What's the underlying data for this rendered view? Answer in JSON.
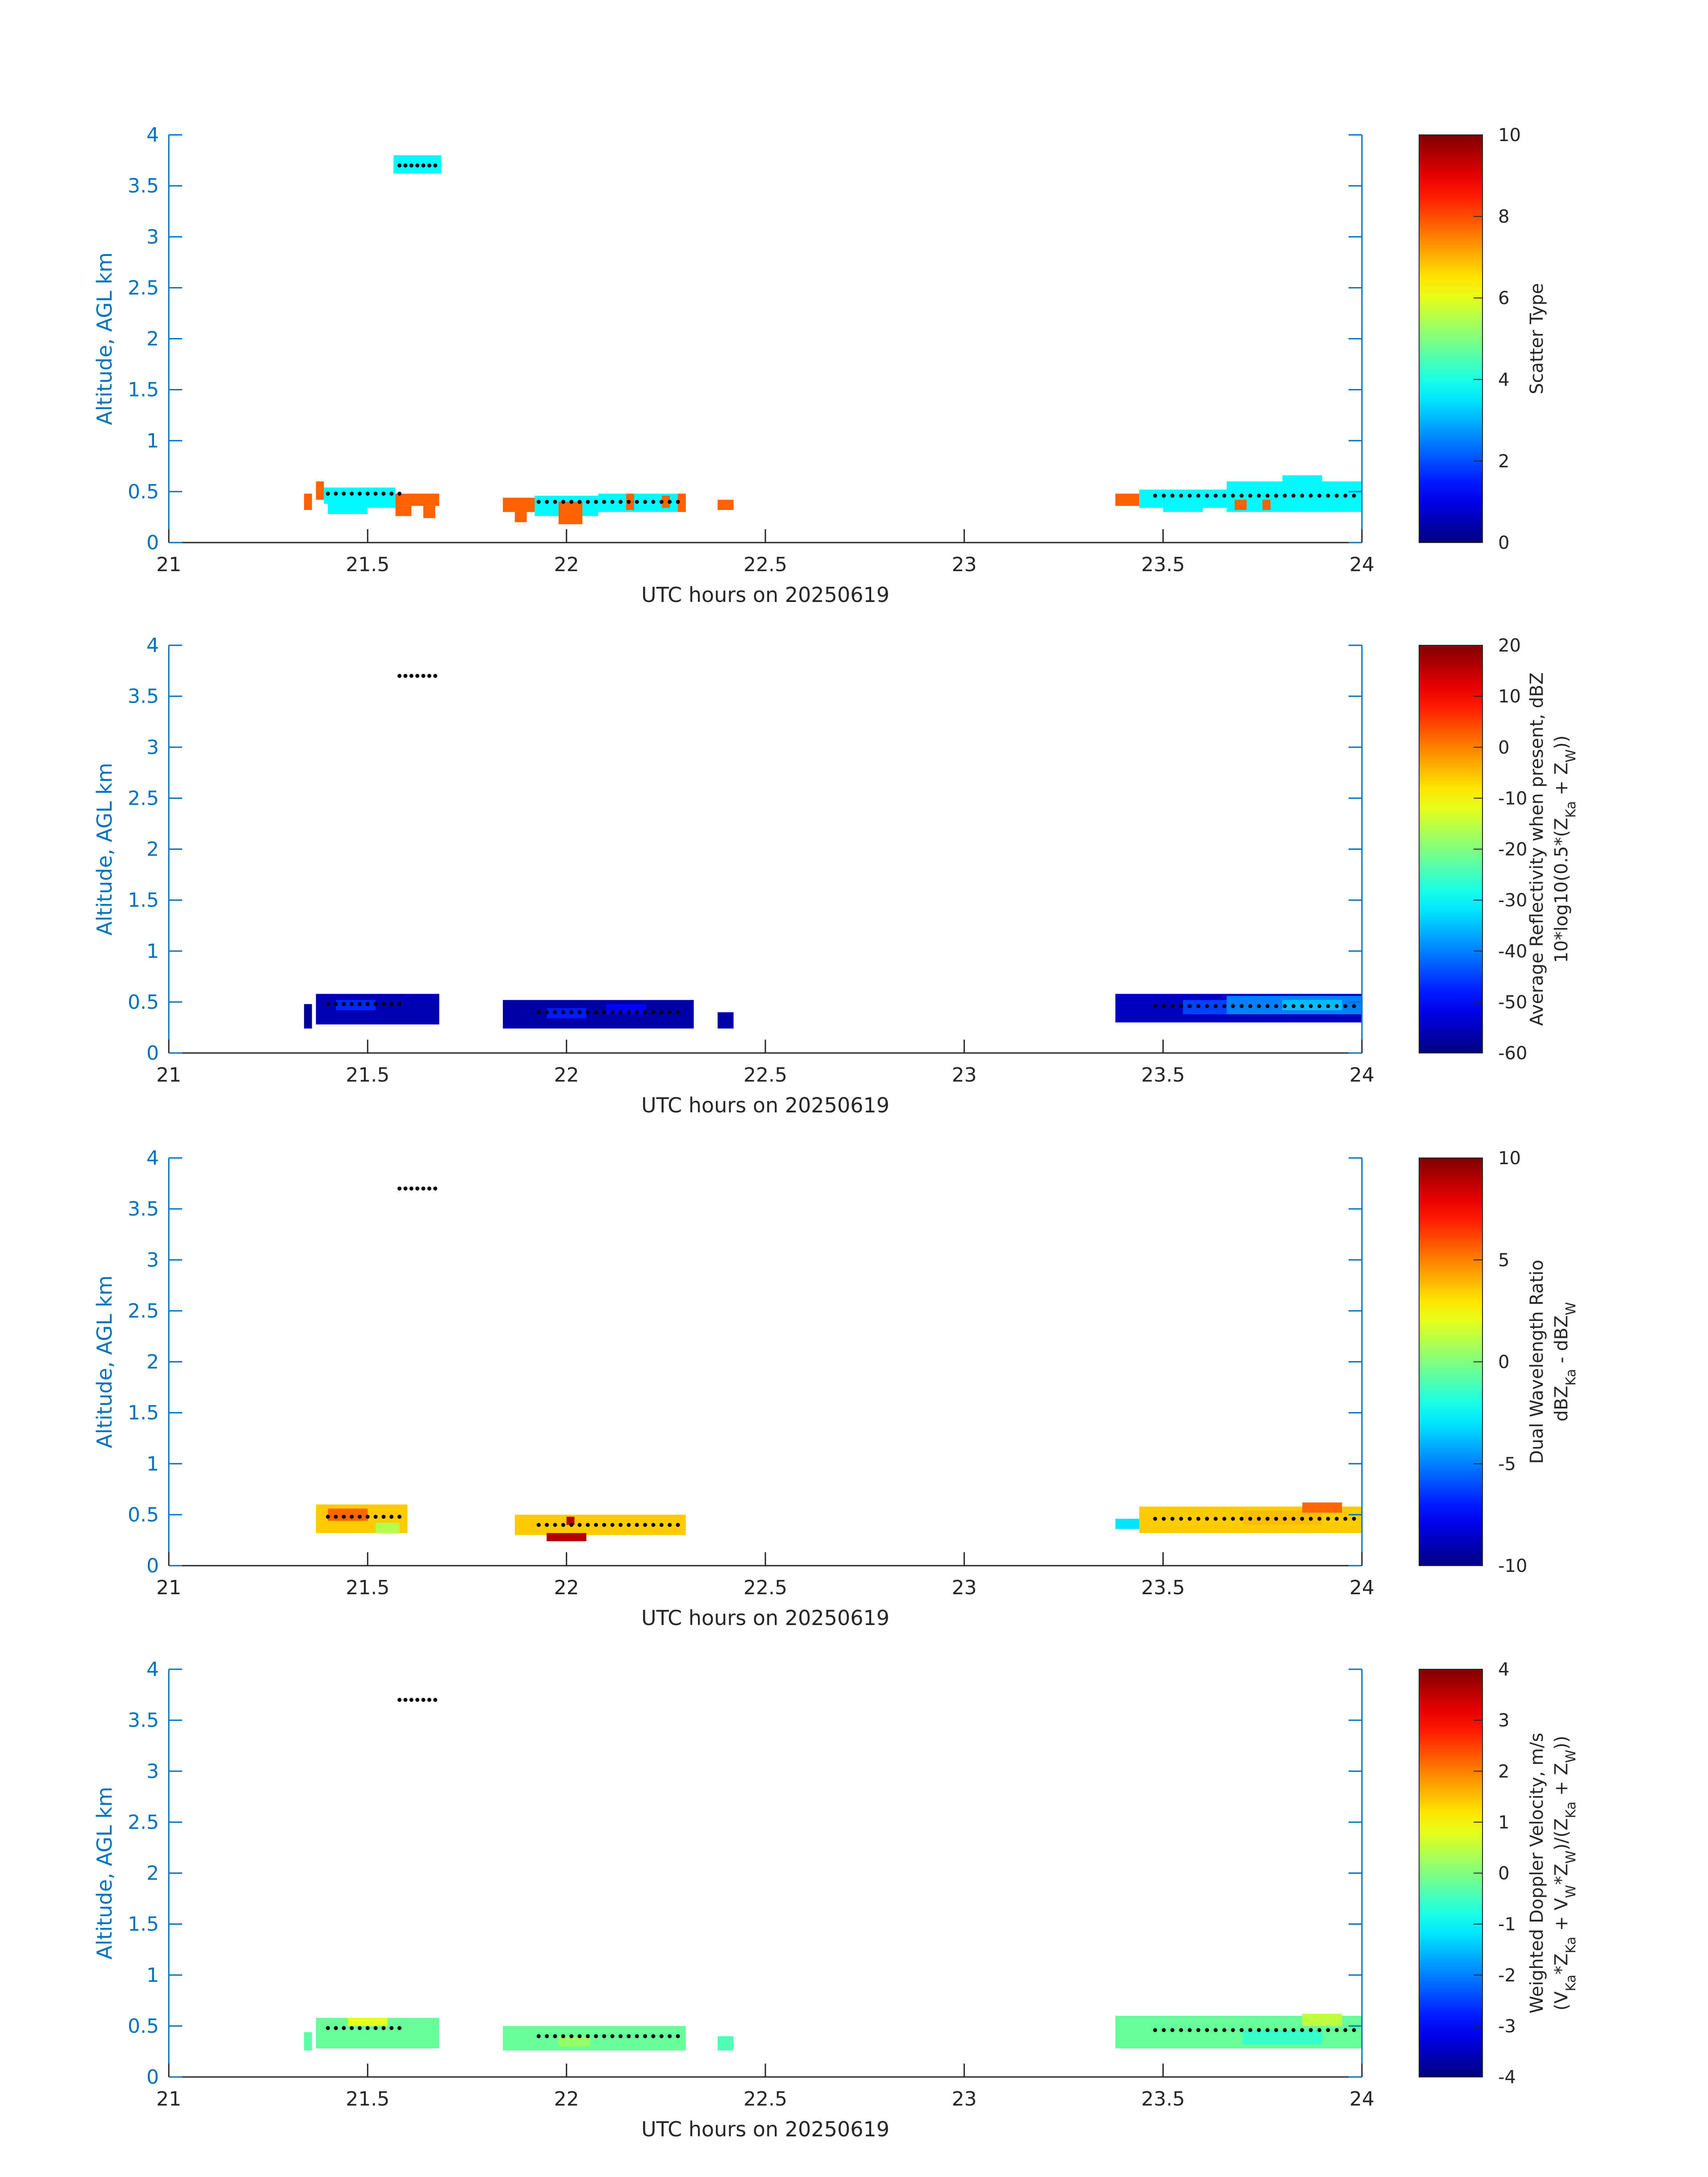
{
  "chart_data": [
    {
      "type": "heatmap",
      "panel": "scatter-type",
      "xlabel": "UTC hours on 20250619",
      "ylabel": "Altitude, AGL km",
      "xlim": [
        21,
        24
      ],
      "ylim": [
        0,
        4
      ],
      "xticks": [
        "21",
        "21.5",
        "22",
        "22.5",
        "23",
        "23.5",
        "24"
      ],
      "yticks": [
        "0",
        "0.5",
        "1",
        "1.5",
        "2",
        "2.5",
        "3",
        "3.5",
        "4"
      ],
      "colorbar": {
        "label_lines": [
          "Scatter Type"
        ],
        "clim": [
          0,
          10
        ],
        "ticks": [
          "0",
          "2",
          "4",
          "6",
          "8",
          "10"
        ]
      },
      "cells": [
        {
          "x0": 21.565,
          "x1": 21.685,
          "y0": 3.62,
          "y1": 3.8,
          "value": 3.7
        },
        {
          "x0": 21.34,
          "x1": 21.36,
          "y0": 0.32,
          "y1": 0.48,
          "value": 7.8
        },
        {
          "x0": 21.37,
          "x1": 21.39,
          "y0": 0.42,
          "y1": 0.6,
          "value": 7.8
        },
        {
          "x0": 21.39,
          "x1": 21.57,
          "y0": 0.38,
          "y1": 0.54,
          "value": 3.7
        },
        {
          "x0": 21.4,
          "x1": 21.5,
          "y0": 0.28,
          "y1": 0.4,
          "value": 3.7
        },
        {
          "x0": 21.5,
          "x1": 21.57,
          "y0": 0.34,
          "y1": 0.46,
          "value": 3.7
        },
        {
          "x0": 21.57,
          "x1": 21.68,
          "y0": 0.36,
          "y1": 0.48,
          "value": 7.8
        },
        {
          "x0": 21.57,
          "x1": 21.61,
          "y0": 0.26,
          "y1": 0.36,
          "value": 7.8
        },
        {
          "x0": 21.64,
          "x1": 21.67,
          "y0": 0.24,
          "y1": 0.36,
          "value": 7.8
        },
        {
          "x0": 21.84,
          "x1": 21.92,
          "y0": 0.3,
          "y1": 0.44,
          "value": 7.8
        },
        {
          "x0": 21.87,
          "x1": 21.9,
          "y0": 0.2,
          "y1": 0.3,
          "value": 7.8
        },
        {
          "x0": 21.92,
          "x1": 22.08,
          "y0": 0.26,
          "y1": 0.46,
          "value": 3.7
        },
        {
          "x0": 21.98,
          "x1": 22.04,
          "y0": 0.18,
          "y1": 0.4,
          "value": 7.8
        },
        {
          "x0": 22.08,
          "x1": 22.3,
          "y0": 0.3,
          "y1": 0.48,
          "value": 3.7
        },
        {
          "x0": 22.15,
          "x1": 22.17,
          "y0": 0.32,
          "y1": 0.48,
          "value": 7.8
        },
        {
          "x0": 22.24,
          "x1": 22.26,
          "y0": 0.34,
          "y1": 0.46,
          "value": 7.8
        },
        {
          "x0": 22.28,
          "x1": 22.3,
          "y0": 0.3,
          "y1": 0.48,
          "value": 7.8
        },
        {
          "x0": 22.38,
          "x1": 22.42,
          "y0": 0.32,
          "y1": 0.42,
          "value": 7.8
        },
        {
          "x0": 23.38,
          "x1": 23.44,
          "y0": 0.36,
          "y1": 0.48,
          "value": 7.8
        },
        {
          "x0": 23.44,
          "x1": 23.66,
          "y0": 0.34,
          "y1": 0.52,
          "value": 3.7
        },
        {
          "x0": 23.5,
          "x1": 23.6,
          "y0": 0.3,
          "y1": 0.4,
          "value": 3.7
        },
        {
          "x0": 23.66,
          "x1": 24.0,
          "y0": 0.3,
          "y1": 0.6,
          "value": 3.7
        },
        {
          "x0": 23.8,
          "x1": 23.9,
          "y0": 0.56,
          "y1": 0.66,
          "value": 3.7
        },
        {
          "x0": 23.68,
          "x1": 23.71,
          "y0": 0.32,
          "y1": 0.42,
          "value": 7.8
        },
        {
          "x0": 23.75,
          "x1": 23.77,
          "y0": 0.32,
          "y1": 0.42,
          "value": 7.8
        }
      ],
      "dots": [
        {
          "x0": 21.58,
          "x1": 21.67,
          "y": 3.7,
          "n": 7
        },
        {
          "x0": 21.4,
          "x1": 21.58,
          "y": 0.48,
          "n": 10
        },
        {
          "x0": 21.93,
          "x1": 22.28,
          "y": 0.4,
          "n": 18
        },
        {
          "x0": 23.48,
          "x1": 23.98,
          "y": 0.46,
          "n": 24
        }
      ]
    },
    {
      "type": "heatmap",
      "panel": "reflectivity",
      "xlabel": "UTC hours on 20250619",
      "ylabel": "Altitude, AGL km",
      "xlim": [
        21,
        24
      ],
      "ylim": [
        0,
        4
      ],
      "xticks": [
        "21",
        "21.5",
        "22",
        "22.5",
        "23",
        "23.5",
        "24"
      ],
      "yticks": [
        "0",
        "0.5",
        "1",
        "1.5",
        "2",
        "2.5",
        "3",
        "3.5",
        "4"
      ],
      "colorbar": {
        "label_lines": [
          "Average Reflectivity when present, dBZ",
          "10*log10(0.5*(Z",
          "Ka",
          " + Z",
          "W",
          "))"
        ],
        "clim": [
          -60,
          20
        ],
        "ticks": [
          "-60",
          "-50",
          "-40",
          "-30",
          "-20",
          "-10",
          "0",
          "10",
          "20"
        ]
      },
      "cells": [
        {
          "x0": 21.34,
          "x1": 21.36,
          "y0": 0.24,
          "y1": 0.48,
          "value": -58
        },
        {
          "x0": 21.37,
          "x1": 21.68,
          "y0": 0.28,
          "y1": 0.58,
          "value": -56
        },
        {
          "x0": 21.42,
          "x1": 21.52,
          "y0": 0.42,
          "y1": 0.52,
          "value": -47
        },
        {
          "x0": 21.84,
          "x1": 22.32,
          "y0": 0.24,
          "y1": 0.52,
          "value": -57
        },
        {
          "x0": 21.95,
          "x1": 22.05,
          "y0": 0.34,
          "y1": 0.44,
          "value": -48
        },
        {
          "x0": 22.1,
          "x1": 22.2,
          "y0": 0.38,
          "y1": 0.48,
          "value": -50
        },
        {
          "x0": 22.38,
          "x1": 22.42,
          "y0": 0.24,
          "y1": 0.4,
          "value": -57
        },
        {
          "x0": 23.38,
          "x1": 24.0,
          "y0": 0.3,
          "y1": 0.58,
          "value": -55
        },
        {
          "x0": 23.55,
          "x1": 23.66,
          "y0": 0.38,
          "y1": 0.52,
          "value": -45
        },
        {
          "x0": 23.66,
          "x1": 24.0,
          "y0": 0.38,
          "y1": 0.56,
          "value": -40
        },
        {
          "x0": 23.8,
          "x1": 23.95,
          "y0": 0.42,
          "y1": 0.52,
          "value": -35
        }
      ],
      "dots": [
        {
          "x0": 21.58,
          "x1": 21.67,
          "y": 3.7,
          "n": 7
        },
        {
          "x0": 21.4,
          "x1": 21.58,
          "y": 0.48,
          "n": 10
        },
        {
          "x0": 21.93,
          "x1": 22.28,
          "y": 0.4,
          "n": 18
        },
        {
          "x0": 23.48,
          "x1": 23.98,
          "y": 0.46,
          "n": 24
        }
      ]
    },
    {
      "type": "heatmap",
      "panel": "dual-wavelength-ratio",
      "xlabel": "UTC hours on 20250619",
      "ylabel": "Altitude, AGL km",
      "xlim": [
        21,
        24
      ],
      "ylim": [
        0,
        4
      ],
      "xticks": [
        "21",
        "21.5",
        "22",
        "22.5",
        "23",
        "23.5",
        "24"
      ],
      "yticks": [
        "0",
        "0.5",
        "1",
        "1.5",
        "2",
        "2.5",
        "3",
        "3.5",
        "4"
      ],
      "colorbar": {
        "label_lines": [
          "Dual Wavelength Ratio",
          "dBZ",
          "Ka",
          " - dBZ",
          "W"
        ],
        "clim": [
          -10,
          10
        ],
        "ticks": [
          "-10",
          "-5",
          "0",
          "5",
          "10"
        ]
      },
      "cells": [
        {
          "x0": 21.37,
          "x1": 21.6,
          "y0": 0.32,
          "y1": 0.6,
          "value": 3.5
        },
        {
          "x0": 21.4,
          "x1": 21.5,
          "y0": 0.44,
          "y1": 0.56,
          "value": 5.5
        },
        {
          "x0": 21.52,
          "x1": 21.58,
          "y0": 0.32,
          "y1": 0.42,
          "value": 1
        },
        {
          "x0": 21.87,
          "x1": 22.3,
          "y0": 0.3,
          "y1": 0.5,
          "value": 3.5
        },
        {
          "x0": 21.95,
          "x1": 22.05,
          "y0": 0.24,
          "y1": 0.32,
          "value": 9
        },
        {
          "x0": 22.0,
          "x1": 22.02,
          "y0": 0.4,
          "y1": 0.48,
          "value": 9
        },
        {
          "x0": 23.38,
          "x1": 23.46,
          "y0": 0.36,
          "y1": 0.46,
          "value": -3
        },
        {
          "x0": 23.44,
          "x1": 24.0,
          "y0": 0.32,
          "y1": 0.58,
          "value": 3.5
        },
        {
          "x0": 23.7,
          "x1": 23.9,
          "y0": 0.4,
          "y1": 0.54,
          "value": 3.8
        },
        {
          "x0": 23.85,
          "x1": 23.95,
          "y0": 0.52,
          "y1": 0.62,
          "value": 5.5
        }
      ],
      "dots": [
        {
          "x0": 21.58,
          "x1": 21.67,
          "y": 3.7,
          "n": 7
        },
        {
          "x0": 21.4,
          "x1": 21.58,
          "y": 0.48,
          "n": 10
        },
        {
          "x0": 21.93,
          "x1": 22.28,
          "y": 0.4,
          "n": 18
        },
        {
          "x0": 23.48,
          "x1": 23.98,
          "y": 0.46,
          "n": 24
        }
      ]
    },
    {
      "type": "heatmap",
      "panel": "weighted-doppler-velocity",
      "xlabel": "UTC hours on 20250619",
      "ylabel": "Altitude, AGL km",
      "xlim": [
        21,
        24
      ],
      "ylim": [
        0,
        4
      ],
      "xticks": [
        "21",
        "21.5",
        "22",
        "22.5",
        "23",
        "23.5",
        "24"
      ],
      "yticks": [
        "0",
        "0.5",
        "1",
        "1.5",
        "2",
        "2.5",
        "3",
        "3.5",
        "4"
      ],
      "colorbar": {
        "label_lines": [
          "Weighted Doppler Velocity, m/s",
          "(V",
          "Ka",
          "*Z",
          "Ka",
          " + V",
          "W",
          "*Z",
          "W",
          ")/(Z",
          "Ka",
          " + Z",
          "W",
          "))"
        ],
        "clim": [
          -4,
          4
        ],
        "ticks": [
          "-4",
          "-3",
          "-2",
          "-1",
          "0",
          "1",
          "2",
          "3",
          "4"
        ]
      },
      "cells": [
        {
          "x0": 21.34,
          "x1": 21.36,
          "y0": 0.26,
          "y1": 0.44,
          "value": -0.3
        },
        {
          "x0": 21.37,
          "x1": 21.68,
          "y0": 0.28,
          "y1": 0.58,
          "value": -0.2
        },
        {
          "x0": 21.45,
          "x1": 21.55,
          "y0": 0.5,
          "y1": 0.58,
          "value": 0.8
        },
        {
          "x0": 21.84,
          "x1": 22.3,
          "y0": 0.26,
          "y1": 0.5,
          "value": -0.2
        },
        {
          "x0": 21.98,
          "x1": 22.06,
          "y0": 0.3,
          "y1": 0.4,
          "value": 0.2
        },
        {
          "x0": 22.38,
          "x1": 22.42,
          "y0": 0.26,
          "y1": 0.4,
          "value": -0.4
        },
        {
          "x0": 23.38,
          "x1": 24.0,
          "y0": 0.28,
          "y1": 0.6,
          "value": -0.2
        },
        {
          "x0": 23.7,
          "x1": 23.9,
          "y0": 0.32,
          "y1": 0.46,
          "value": -0.6
        },
        {
          "x0": 23.85,
          "x1": 23.95,
          "y0": 0.5,
          "y1": 0.62,
          "value": 0.5
        }
      ],
      "dots": [
        {
          "x0": 21.58,
          "x1": 21.67,
          "y": 3.7,
          "n": 7
        },
        {
          "x0": 21.4,
          "x1": 21.58,
          "y": 0.48,
          "n": 10
        },
        {
          "x0": 21.93,
          "x1": 22.28,
          "y": 0.4,
          "n": 18
        },
        {
          "x0": 23.48,
          "x1": 23.98,
          "y": 0.46,
          "n": 24
        }
      ]
    }
  ]
}
